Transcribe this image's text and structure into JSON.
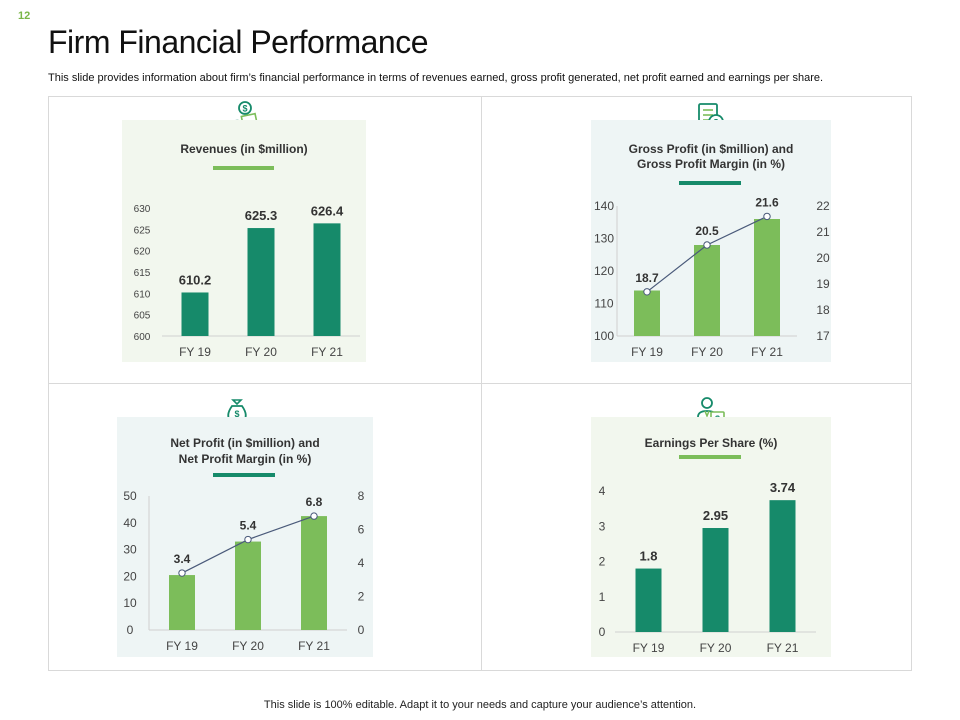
{
  "page_number": "12",
  "title": "Firm Financial Performance",
  "subtitle": "This slide provides information about firm’s financial performance in terms of revenues earned, gross profit generated, net profit earned and earnings per share.",
  "footer": "This slide is 100% editable. Adapt it to your needs and capture your audience’s attention.",
  "icons": [
    "money-hand-icon",
    "invoice-dollar-icon",
    "money-bag-icon",
    "businessman-dollar-icon"
  ],
  "colors": {
    "dark_green": "#168a6a",
    "light_green": "#7cbd5a",
    "panel_bg_green": "#f2f7ee",
    "panel_bg_blue": "#eef5f5"
  },
  "chart_data": [
    {
      "id": "revenues",
      "type": "bar",
      "title_lines": [
        "Revenues  (in $million)"
      ],
      "categories": [
        "FY 19",
        "FY 20",
        "FY 21"
      ],
      "values": [
        610.2,
        625.3,
        626.4
      ],
      "value_labels": [
        "610.2",
        "625.3",
        "626.4"
      ],
      "ylim": [
        600,
        630
      ],
      "yticks": [
        "600",
        "605",
        "610",
        "615",
        "620",
        "625",
        "630"
      ],
      "bar_color": "#168a6a",
      "underline_color": "#7cbd5a"
    },
    {
      "id": "gross-profit",
      "type": "bar+line",
      "title_lines": [
        "Gross Profit (in $million) and",
        "Gross Profit Margin (in %)"
      ],
      "categories": [
        "FY 19",
        "FY 20",
        "FY 21"
      ],
      "values": [
        114,
        128,
        136
      ],
      "ylim": [
        100,
        140
      ],
      "yticks": [
        "100",
        "110",
        "120",
        "130",
        "140"
      ],
      "line_values": [
        18.7,
        20.5,
        21.6
      ],
      "line_labels": [
        "18.7",
        "20.5",
        "21.6"
      ],
      "y2lim": [
        17,
        22
      ],
      "y2ticks": [
        "17",
        "18",
        "19",
        "20",
        "21",
        "22"
      ],
      "bar_color": "#7cbd5a",
      "underline_color": "#168a6a"
    },
    {
      "id": "net-profit",
      "type": "bar+line",
      "title_lines": [
        "Net Profit (in $million) and",
        "Net Profit Margin (in %)"
      ],
      "categories": [
        "FY 19",
        "FY 20",
        "FY 21"
      ],
      "values": [
        20.5,
        33,
        42.5
      ],
      "ylim": [
        0,
        50
      ],
      "yticks": [
        "0",
        "10",
        "20",
        "30",
        "40",
        "50"
      ],
      "line_values": [
        3.4,
        5.4,
        6.8
      ],
      "line_labels": [
        "3.4",
        "5.4",
        "6.8"
      ],
      "y2lim": [
        0,
        8
      ],
      "y2ticks": [
        "0",
        "2",
        "4",
        "6",
        "8"
      ],
      "bar_color": "#7cbd5a",
      "underline_color": "#168a6a"
    },
    {
      "id": "eps",
      "type": "bar",
      "title_lines": [
        "Earnings Per Share (%)"
      ],
      "categories": [
        "FY 19",
        "FY 20",
        "FY 21"
      ],
      "values": [
        1.8,
        2.95,
        3.74
      ],
      "value_labels": [
        "1.8",
        "2.95",
        "3.74"
      ],
      "ylim": [
        0,
        4
      ],
      "yticks": [
        "0",
        "1",
        "2",
        "3",
        "4"
      ],
      "bar_color": "#168a6a",
      "underline_color": "#7cbd5a"
    }
  ]
}
